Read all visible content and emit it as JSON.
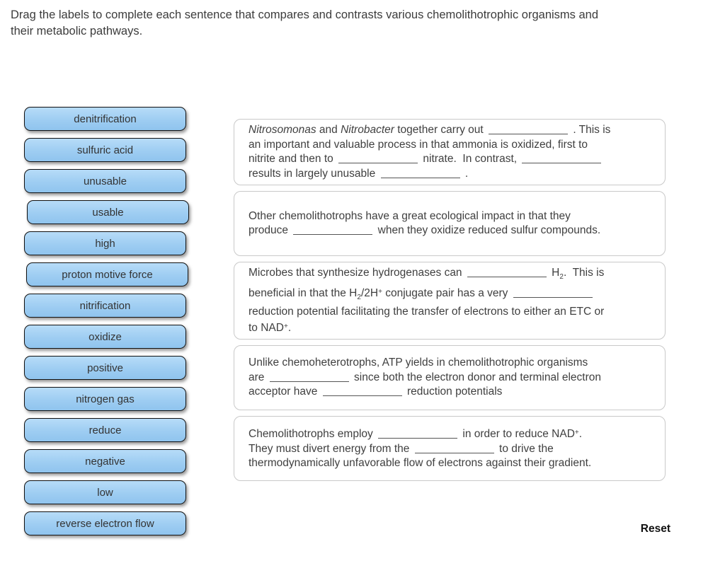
{
  "instructions": [
    "Drag the labels to complete each sentence that compares and contrasts various chemolithotrophic organisms and",
    "their metabolic pathways."
  ],
  "reset_label": "Reset",
  "colors": {
    "chip_fill": "#9ecdf2",
    "chip_fill_top": "#b7dcf8",
    "chip_fill_bottom": "#90c4ee",
    "chip_border": "#111111",
    "box_border": "#c9c9c9",
    "text": "#3f3f3f"
  },
  "labels": [
    "denitrification",
    "sulfuric acid",
    "unusable",
    "usable",
    "high",
    "proton motive force",
    "nitrification",
    "oxidize",
    "positive",
    "nitrogen gas",
    "reduce",
    "negative",
    "low",
    "reverse electron flow"
  ],
  "sentences": [
    {
      "lines": [
        [
          {
            "text": "Nitrosomonas",
            "italic": true
          },
          {
            "text": " and "
          },
          {
            "text": "Nitrobacter",
            "italic": true
          },
          {
            "text": " together carry out "
          },
          {
            "blank": true
          },
          {
            "text": " . This is"
          }
        ],
        [
          {
            "text": "an important and valuable process in that ammonia is oxidized, first to"
          }
        ],
        [
          {
            "text": "nitrite and then to "
          },
          {
            "blank": true
          },
          {
            "text": " nitrate.  In contrast, "
          },
          {
            "blank": true
          }
        ],
        [
          {
            "text": "results in largely unusable "
          },
          {
            "blank": true
          },
          {
            "text": " ."
          }
        ]
      ]
    },
    {
      "lines": [
        [
          {
            "text": "Other chemolithotrophs have a great ecological impact in that they"
          }
        ],
        [
          {
            "text": "produce "
          },
          {
            "blank": true
          },
          {
            "text": " when they oxidize reduced sulfur compounds."
          }
        ]
      ]
    },
    {
      "lines": [
        [
          {
            "text": "Microbes that synthesize hydrogenases can "
          },
          {
            "blank": true
          },
          {
            "text": " H"
          },
          {
            "text": "2",
            "sub": true
          },
          {
            "text": ".  This is"
          }
        ],
        [
          {
            "text": "beneficial in that the H"
          },
          {
            "text": "2",
            "sub": true
          },
          {
            "text": "/2H"
          },
          {
            "text": "+",
            "sup": true
          },
          {
            "text": " conjugate pair has a very "
          },
          {
            "blank": true
          }
        ],
        [
          {
            "text": "reduction potential facilitating the transfer of electrons to either an ETC or"
          }
        ],
        [
          {
            "text": "to NAD"
          },
          {
            "text": "+",
            "sup": true
          },
          {
            "text": "."
          }
        ]
      ]
    },
    {
      "lines": [
        [
          {
            "text": "Unlike chemoheterotrophs, ATP yields in chemolithotrophic organisms"
          }
        ],
        [
          {
            "text": "are "
          },
          {
            "blank": true
          },
          {
            "text": " since both the electron donor and terminal electron"
          }
        ],
        [
          {
            "text": "acceptor have "
          },
          {
            "blank": true
          },
          {
            "text": " reduction potentials"
          }
        ]
      ]
    },
    {
      "lines": [
        [
          {
            "text": "Chemolithotrophs employ "
          },
          {
            "blank": true
          },
          {
            "text": " in order to reduce NAD"
          },
          {
            "text": "+",
            "sup": true
          },
          {
            "text": "."
          }
        ],
        [
          {
            "text": "They must divert energy from the "
          },
          {
            "blank": true
          },
          {
            "text": " to drive the"
          }
        ],
        [
          {
            "text": "thermodynamically unfavorable flow of electrons against their gradient."
          }
        ]
      ]
    }
  ]
}
